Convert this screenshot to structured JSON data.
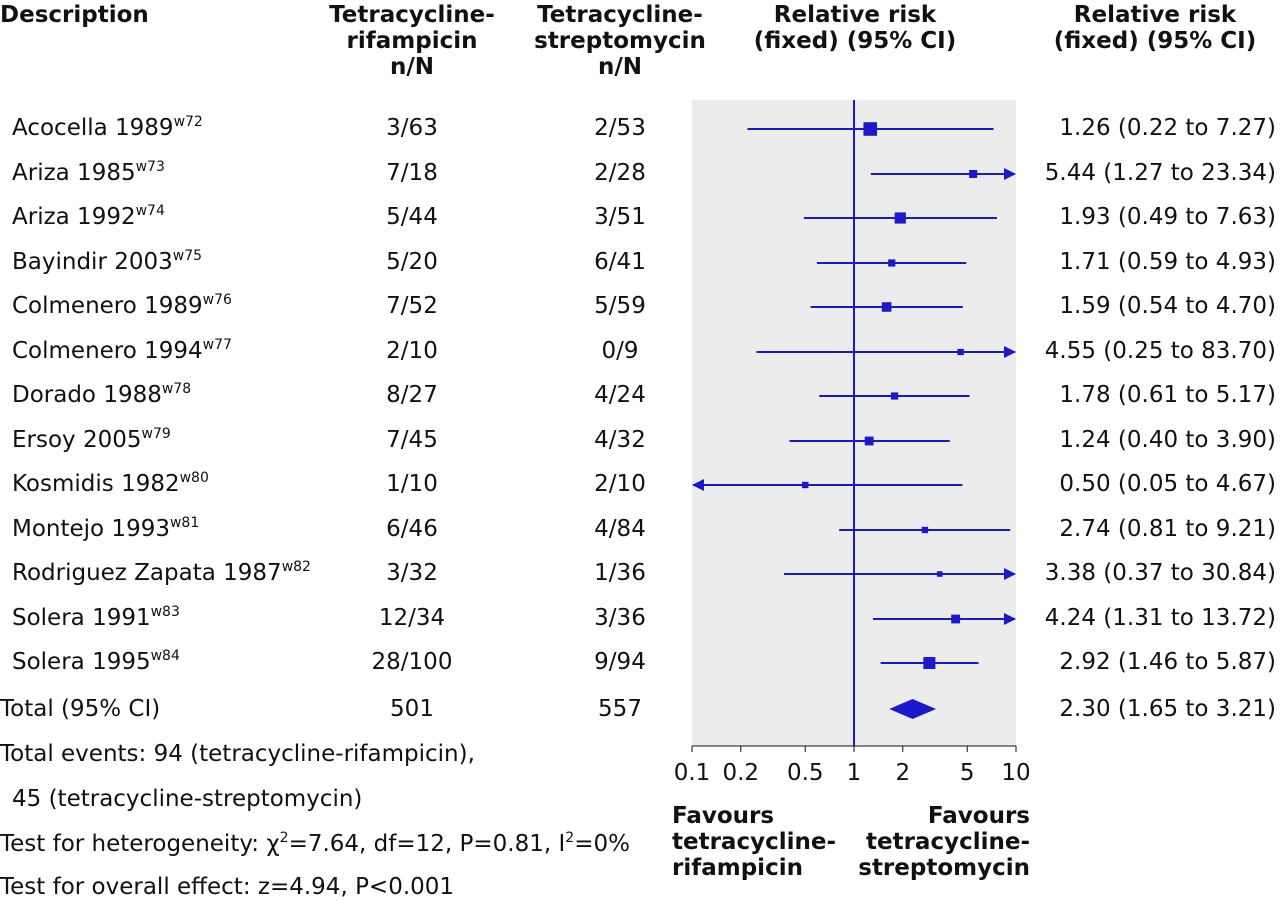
{
  "headers": {
    "description": "Description",
    "group1": [
      "Tetracycline-",
      "rifampicin",
      "n/N"
    ],
    "group2": [
      "Tetracycline-",
      "streptomycin",
      "n/N"
    ],
    "plot": [
      "Relative risk",
      "(fixed) (95% CI)"
    ],
    "ci": [
      "Relative risk",
      "(fixed) (95% CI)"
    ]
  },
  "studies": [
    {
      "name": "Acocella 1989",
      "ref": "w72",
      "g1": "3/63",
      "g2": "2/53",
      "ci_text": "1.26 (0.22 to 7.27)"
    },
    {
      "name": "Ariza 1985",
      "ref": "w73",
      "g1": "7/18",
      "g2": "2/28",
      "ci_text": "5.44 (1.27 to 23.34)"
    },
    {
      "name": "Ariza 1992",
      "ref": "w74",
      "g1": "5/44",
      "g2": "3/51",
      "ci_text": "1.93 (0.49 to 7.63)"
    },
    {
      "name": "Bayindir 2003",
      "ref": "w75",
      "g1": "5/20",
      "g2": "6/41",
      "ci_text": "1.71 (0.59 to 4.93)"
    },
    {
      "name": "Colmenero 1989",
      "ref": "w76",
      "g1": "7/52",
      "g2": "5/59",
      "ci_text": "1.59 (0.54 to 4.70)"
    },
    {
      "name": "Colmenero 1994",
      "ref": "w77",
      "g1": "2/10",
      "g2": "0/9",
      "ci_text": "4.55 (0.25 to 83.70)"
    },
    {
      "name": "Dorado 1988",
      "ref": "w78",
      "g1": "8/27",
      "g2": "4/24",
      "ci_text": "1.78 (0.61 to 5.17)"
    },
    {
      "name": "Ersoy 2005",
      "ref": "w79",
      "g1": "7/45",
      "g2": "4/32",
      "ci_text": "1.24 (0.40 to 3.90)"
    },
    {
      "name": "Kosmidis 1982",
      "ref": "w80",
      "g1": "1/10",
      "g2": "2/10",
      "ci_text": "0.50 (0.05 to 4.67)"
    },
    {
      "name": "Montejo 1993",
      "ref": "w81",
      "g1": "6/46",
      "g2": "4/84",
      "ci_text": "2.74 (0.81 to 9.21)"
    },
    {
      "name": "Rodriguez Zapata 1987",
      "ref": "w82",
      "g1": "3/32",
      "g2": "1/36",
      "ci_text": "3.38 (0.37 to 30.84)"
    },
    {
      "name": "Solera 1991",
      "ref": "w83",
      "g1": "12/34",
      "g2": "3/36",
      "ci_text": "4.24 (1.31 to 13.72)"
    },
    {
      "name": "Solera 1995",
      "ref": "w84",
      "g1": "28/100",
      "g2": "9/94",
      "ci_text": "2.92 (1.46 to 5.87)"
    }
  ],
  "total": {
    "label": "Total (95% CI)",
    "g1": "501",
    "g2": "557",
    "ci_text": "2.30 (1.65 to 3.21)"
  },
  "footnotes": {
    "events_1": "Total events: 94 (tetracycline-rifampicin),",
    "events_2": "45 (tetracycline-streptomycin)",
    "heterogeneity_prefix": "Test for heterogeneity: ",
    "chi_symbol": "χ",
    "chi_sup": "2",
    "heterogeneity_mid": "=7.64, df=12, P=0.81, I",
    "i_sup": "2",
    "heterogeneity_end": "=0%",
    "overall": "Test for overall effect: z=4.94, P<0.001"
  },
  "favours": {
    "left": [
      "Favours",
      "tetracycline-",
      "rifampicin"
    ],
    "right": [
      "Favours",
      "tetracycline-",
      "streptomycin"
    ]
  },
  "colors": {
    "marker": "#1a1acc",
    "panel": "#ececec",
    "text": "#111111"
  },
  "chart_data": {
    "type": "forest",
    "scale": "log",
    "xlim": [
      0.1,
      10
    ],
    "x_ticks": [
      0.1,
      0.2,
      0.5,
      1,
      2,
      5,
      10
    ],
    "x_tick_labels": [
      "0.1",
      "0.2",
      "0.5",
      "1",
      "2",
      "5",
      "10"
    ],
    "reference_line": 1,
    "studies": [
      {
        "estimate": 1.26,
        "lower": 0.22,
        "upper": 7.27,
        "weight": 8.5
      },
      {
        "estimate": 5.44,
        "lower": 1.27,
        "upper": 23.34,
        "weight": 5.0
      },
      {
        "estimate": 1.93,
        "lower": 0.49,
        "upper": 7.63,
        "weight": 7.0
      },
      {
        "estimate": 1.71,
        "lower": 0.59,
        "upper": 4.93,
        "weight": 4.5
      },
      {
        "estimate": 1.59,
        "lower": 0.54,
        "upper": 4.7,
        "weight": 6.0
      },
      {
        "estimate": 4.55,
        "lower": 0.25,
        "upper": 83.7,
        "weight": 4.0
      },
      {
        "estimate": 1.78,
        "lower": 0.61,
        "upper": 5.17,
        "weight": 4.5
      },
      {
        "estimate": 1.24,
        "lower": 0.4,
        "upper": 3.9,
        "weight": 5.5
      },
      {
        "estimate": 0.5,
        "lower": 0.05,
        "upper": 4.67,
        "weight": 4.0
      },
      {
        "estimate": 2.74,
        "lower": 0.81,
        "upper": 9.21,
        "weight": 4.0
      },
      {
        "estimate": 3.38,
        "lower": 0.37,
        "upper": 30.84,
        "weight": 3.5
      },
      {
        "estimate": 4.24,
        "lower": 1.31,
        "upper": 13.72,
        "weight": 5.5
      },
      {
        "estimate": 2.92,
        "lower": 1.46,
        "upper": 5.87,
        "weight": 7.5
      }
    ],
    "pooled": {
      "estimate": 2.3,
      "lower": 1.65,
      "upper": 3.21
    }
  }
}
